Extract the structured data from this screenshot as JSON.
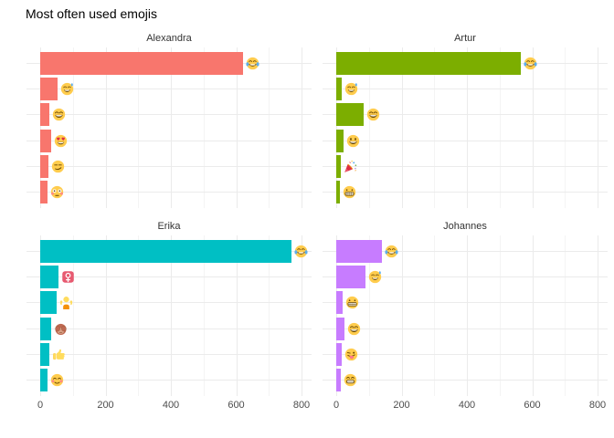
{
  "title": "Most often used emojis",
  "colors": {
    "alexandra_bar": "#F8766D",
    "artur_bar": "#7CAE00",
    "erika_bar": "#00BFC4",
    "johannes_bar": "#C77CFF",
    "grid_major": "#EBEBEB",
    "grid_minor": "#F4F4F4",
    "axis_text": "#4D4D4D",
    "strip_text": "#333333",
    "title_text": "#000000",
    "background": "#FFFFFF"
  },
  "chart_data": {
    "type": "bar",
    "orientation": "horizontal",
    "title": "Most often used emojis",
    "xlabel": "",
    "ylabel": "",
    "xlim": [
      0,
      870
    ],
    "x_ticks": [
      0,
      200,
      400,
      600,
      800
    ],
    "x_minor_ticks": [
      100,
      300,
      500,
      700
    ],
    "grid": true,
    "legend": false,
    "facets": [
      {
        "name": "Alexandra",
        "color": "#F8766D",
        "bars": [
          {
            "emoji": "face-with-tears-of-joy",
            "char": "😂",
            "value": 620
          },
          {
            "emoji": "grinning-face-with-sweat",
            "char": "😅",
            "value": 52
          },
          {
            "emoji": "grinning-face-with-smiling-eyes",
            "char": "😄",
            "value": 28
          },
          {
            "emoji": "smiling-face-with-heart-eyes",
            "char": "😍",
            "value": 34
          },
          {
            "emoji": "smirking-face",
            "char": "😏",
            "value": 25
          },
          {
            "emoji": "flushed-face",
            "char": "😳",
            "value": 22
          }
        ]
      },
      {
        "name": "Artur",
        "color": "#7CAE00",
        "bars": [
          {
            "emoji": "face-with-tears-of-joy",
            "char": "😂",
            "value": 565
          },
          {
            "emoji": "grinning-face-with-sweat",
            "char": "😅",
            "value": 16
          },
          {
            "emoji": "grinning-face-with-smiling-eyes",
            "char": "😄",
            "value": 85
          },
          {
            "emoji": "grinning-face",
            "char": "😀",
            "value": 22
          },
          {
            "emoji": "party-popper",
            "char": "🎉",
            "value": 15
          },
          {
            "emoji": "grimacing-face",
            "char": "😬",
            "value": 12
          }
        ]
      },
      {
        "name": "Erika",
        "color": "#00BFC4",
        "bars": [
          {
            "emoji": "face-with-tears-of-joy",
            "char": "😂",
            "value": 770
          },
          {
            "emoji": "female-sign",
            "char": "♀️",
            "value": 55
          },
          {
            "emoji": "person-shrugging",
            "char": "🤷",
            "value": 50
          },
          {
            "emoji": "see-no-evil-monkey",
            "char": "🙈",
            "value": 33
          },
          {
            "emoji": "thumbs-up",
            "char": "👍",
            "value": 27
          },
          {
            "emoji": "smiling-face-with-smiling-eyes",
            "char": "😊",
            "value": 21
          }
        ]
      },
      {
        "name": "Johannes",
        "color": "#C77CFF",
        "bars": [
          {
            "emoji": "face-with-tears-of-joy",
            "char": "😂",
            "value": 140
          },
          {
            "emoji": "grinning-face-with-sweat",
            "char": "😅",
            "value": 90
          },
          {
            "emoji": "grimacing-face",
            "char": "😬",
            "value": 20
          },
          {
            "emoji": "grinning-face-with-smiling-eyes",
            "char": "😄",
            "value": 26
          },
          {
            "emoji": "winking-face-with-tongue",
            "char": "😜",
            "value": 18
          },
          {
            "emoji": "beaming-face-with-smiling-eyes",
            "char": "😁",
            "value": 15
          }
        ]
      }
    ]
  }
}
